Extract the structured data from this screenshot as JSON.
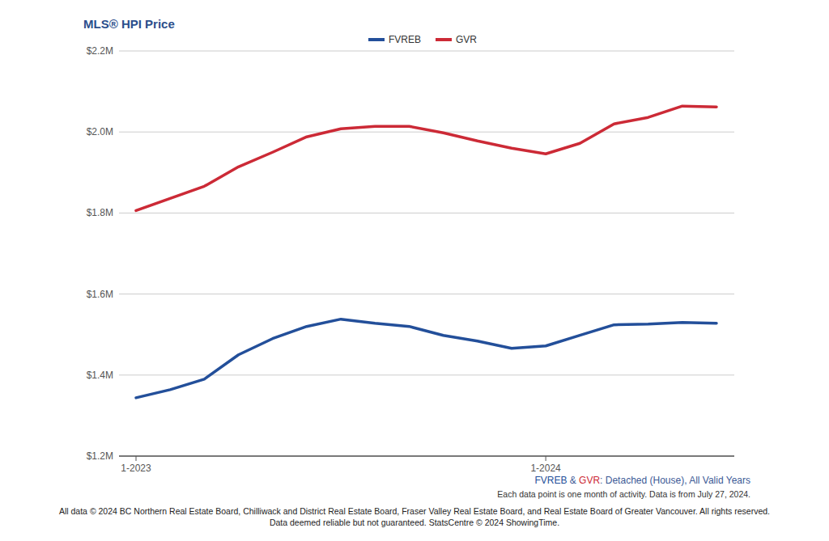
{
  "chart_data": {
    "type": "line",
    "title": "MLS® HPI Price",
    "legend": "top",
    "grid": true,
    "categories": [
      "1-2023",
      null,
      null,
      null,
      null,
      null,
      null,
      null,
      null,
      null,
      null,
      null,
      "1-2024",
      null,
      null,
      null,
      null,
      null
    ],
    "series": [
      {
        "name": "FVREB",
        "color": "#234f9a",
        "values": [
          1344000,
          1364000,
          1390000,
          1450000,
          1490000,
          1520000,
          1538000,
          1528000,
          1520000,
          1498000,
          1484000,
          1466000,
          1472000,
          1498000,
          1524000,
          1526000,
          1530000,
          1528000
        ]
      },
      {
        "name": "GVR",
        "color": "#cc2a36",
        "values": [
          1806000,
          1836000,
          1866000,
          1914000,
          1950000,
          1988000,
          2008000,
          2014000,
          2014000,
          1998000,
          1978000,
          1960000,
          1946000,
          1972000,
          2020000,
          2036000,
          2064000,
          2062000
        ]
      }
    ],
    "ylim": [
      1200000,
      2200000
    ],
    "yticks": [
      {
        "value": 1200000,
        "label": "$1.2M"
      },
      {
        "value": 1400000,
        "label": "$1.4M"
      },
      {
        "value": 1600000,
        "label": "$1.6M"
      },
      {
        "value": 1800000,
        "label": "$1.8M"
      },
      {
        "value": 2000000,
        "label": "$2.0M"
      },
      {
        "value": 2200000,
        "label": "$2.2M"
      }
    ],
    "caption": [
      "FVREB",
      " & ",
      "GVR",
      ": Detached (House), All Valid Years"
    ],
    "note": "Each data point is one month of activity. Data is from July 27, 2024.",
    "footer": [
      "All data © 2024 BC Northern Real Estate Board, Chilliwack and District Real Estate Board, Fraser Valley Real Estate Board, and Real Estate Board of Greater Vancouver. All rights reserved.",
      "Data deemed reliable but not guaranteed. StatsCentre © 2024 ShowingTime."
    ]
  }
}
